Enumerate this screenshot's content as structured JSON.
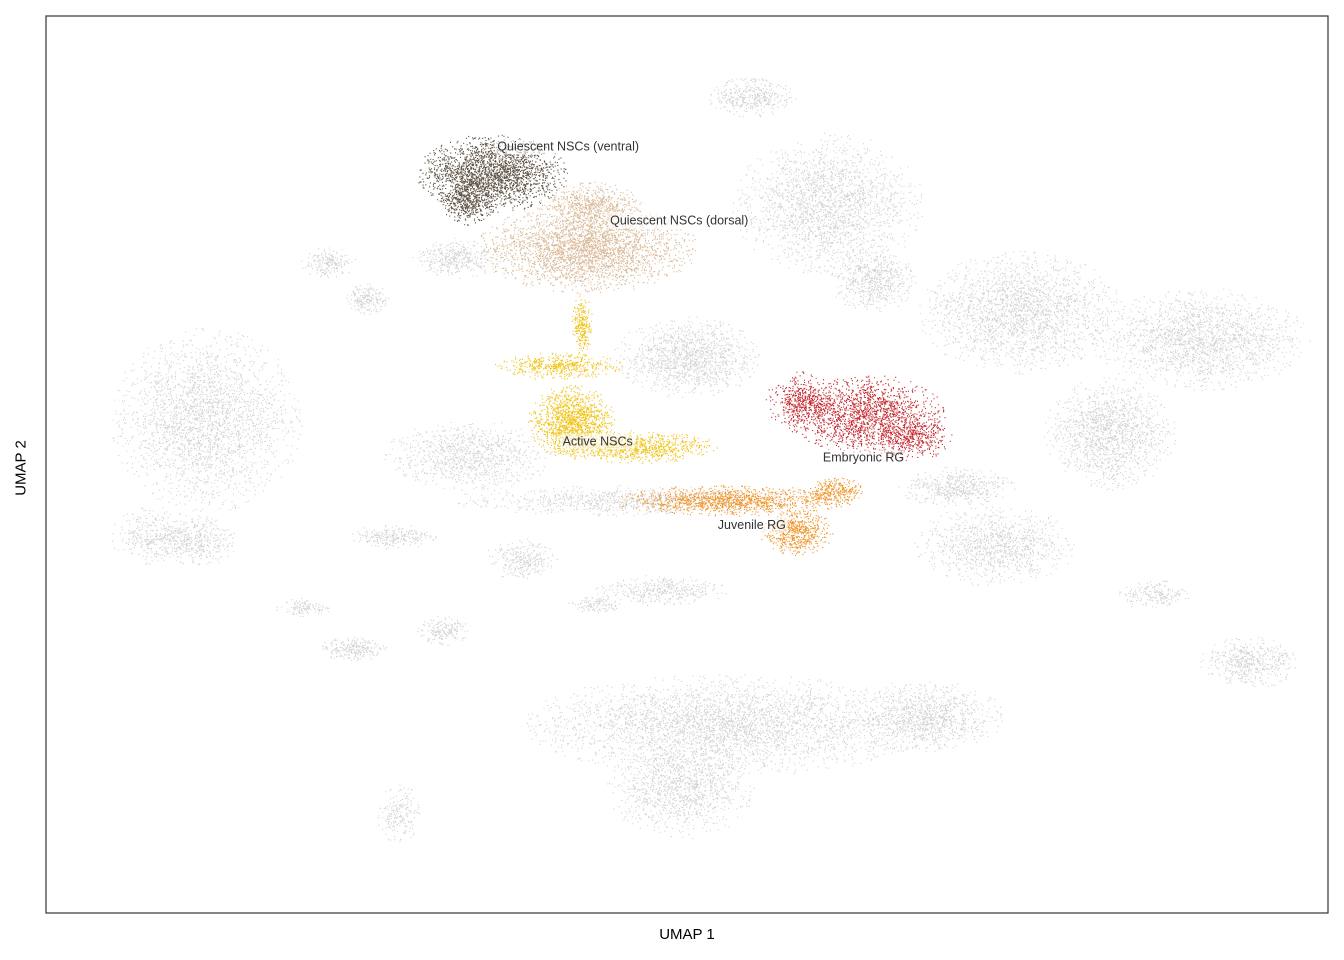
{
  "chart_data": {
    "type": "scatter",
    "title": "",
    "xlabel": "UMAP 1",
    "ylabel": "UMAP 2",
    "xlim": [
      0,
      100
    ],
    "ylim": [
      0,
      100
    ],
    "grid": false,
    "legend": "none",
    "background_color": "#d3d3d3",
    "series": [
      {
        "name": "Quiescent NSCs (ventral)",
        "color": "#5e5345",
        "label_at": [
          35.2,
          85.4
        ],
        "blobs": [
          {
            "cx": 34.8,
            "cy": 82.5,
            "rx": 5.2,
            "ry": 3.8,
            "n": 2200
          },
          {
            "cx": 32.8,
            "cy": 79.5,
            "rx": 2.0,
            "ry": 2.5,
            "n": 500
          }
        ]
      },
      {
        "name": "Quiescent NSCs (dorsal)",
        "color": "#d9b997",
        "label_at": [
          44.0,
          77.1
        ],
        "blobs": [
          {
            "cx": 42.2,
            "cy": 74.2,
            "rx": 7.5,
            "ry": 4.4,
            "n": 3000
          },
          {
            "cx": 42.5,
            "cy": 79.0,
            "rx": 3.5,
            "ry": 2.2,
            "n": 600
          }
        ]
      },
      {
        "name": "Active NSCs",
        "color": "#f0c419",
        "label_at": [
          40.3,
          52.5
        ],
        "blobs": [
          {
            "cx": 41.0,
            "cy": 54.8,
            "rx": 3.0,
            "ry": 3.6,
            "n": 1400
          },
          {
            "cx": 46.0,
            "cy": 52.0,
            "rx": 5.5,
            "ry": 1.6,
            "n": 900
          },
          {
            "cx": 40.0,
            "cy": 61.0,
            "rx": 4.5,
            "ry": 1.3,
            "n": 500
          },
          {
            "cx": 41.8,
            "cy": 65.5,
            "rx": 0.7,
            "ry": 3.2,
            "n": 250
          }
        ]
      },
      {
        "name": "Embryonic RG",
        "color": "#c4282e",
        "label_at": [
          60.6,
          50.7
        ],
        "blobs": [
          {
            "cx": 64.0,
            "cy": 55.5,
            "rx": 5.5,
            "ry": 4.0,
            "n": 1700
          },
          {
            "cx": 59.0,
            "cy": 57.0,
            "rx": 2.5,
            "ry": 3.0,
            "n": 500
          },
          {
            "cx": 67.5,
            "cy": 53.0,
            "rx": 2.8,
            "ry": 2.2,
            "n": 400
          }
        ]
      },
      {
        "name": "Juvenile RG",
        "color": "#f0952a",
        "label_at": [
          52.4,
          43.2
        ],
        "blobs": [
          {
            "cx": 53.5,
            "cy": 46.0,
            "rx": 8.0,
            "ry": 1.5,
            "n": 1200
          },
          {
            "cx": 58.5,
            "cy": 42.5,
            "rx": 2.5,
            "ry": 2.3,
            "n": 600
          },
          {
            "cx": 61.5,
            "cy": 47.0,
            "rx": 2.0,
            "ry": 1.5,
            "n": 300
          }
        ]
      }
    ],
    "background_blobs": [
      {
        "cx": 53.0,
        "cy": 21.0,
        "rx": 14.0,
        "ry": 5.0,
        "n": 3500
      },
      {
        "cx": 49.5,
        "cy": 14.0,
        "rx": 5.0,
        "ry": 5.0,
        "n": 1200
      },
      {
        "cx": 68.5,
        "cy": 22.0,
        "rx": 5.5,
        "ry": 3.5,
        "n": 1100
      },
      {
        "cx": 12.5,
        "cy": 55.0,
        "rx": 6.5,
        "ry": 9.0,
        "n": 2600
      },
      {
        "cx": 8.5,
        "cy": 42.0,
        "rx": 3.0,
        "ry": 3.0,
        "n": 400
      },
      {
        "cx": 12.0,
        "cy": 41.5,
        "rx": 2.5,
        "ry": 2.5,
        "n": 350
      },
      {
        "cx": 83.0,
        "cy": 53.5,
        "rx": 4.5,
        "ry": 5.5,
        "n": 1500
      },
      {
        "cx": 90.0,
        "cy": 64.0,
        "rx": 7.5,
        "ry": 5.0,
        "n": 1900
      },
      {
        "cx": 76.0,
        "cy": 67.0,
        "rx": 7.0,
        "ry": 6.0,
        "n": 2200
      },
      {
        "cx": 61.0,
        "cy": 79.0,
        "rx": 6.5,
        "ry": 7.0,
        "n": 2200
      },
      {
        "cx": 64.5,
        "cy": 70.5,
        "rx": 3.0,
        "ry": 3.0,
        "n": 600
      },
      {
        "cx": 50.0,
        "cy": 62.0,
        "rx": 5.0,
        "ry": 4.0,
        "n": 1300
      },
      {
        "cx": 33.0,
        "cy": 51.0,
        "rx": 6.0,
        "ry": 3.5,
        "n": 1000
      },
      {
        "cx": 45.0,
        "cy": 46.0,
        "rx": 12.0,
        "ry": 1.5,
        "n": 900
      },
      {
        "cx": 74.0,
        "cy": 41.0,
        "rx": 5.5,
        "ry": 4.0,
        "n": 1100
      },
      {
        "cx": 71.0,
        "cy": 47.5,
        "rx": 4.0,
        "ry": 2.0,
        "n": 500
      },
      {
        "cx": 32.0,
        "cy": 73.0,
        "rx": 3.0,
        "ry": 2.0,
        "n": 400
      },
      {
        "cx": 25.0,
        "cy": 68.5,
        "rx": 1.5,
        "ry": 1.5,
        "n": 200
      },
      {
        "cx": 55.0,
        "cy": 91.0,
        "rx": 3.0,
        "ry": 2.0,
        "n": 400
      },
      {
        "cx": 94.0,
        "cy": 28.0,
        "rx": 3.5,
        "ry": 2.5,
        "n": 500
      },
      {
        "cx": 86.5,
        "cy": 35.5,
        "rx": 2.5,
        "ry": 1.5,
        "n": 200
      },
      {
        "cx": 37.0,
        "cy": 39.5,
        "rx": 2.5,
        "ry": 2.0,
        "n": 300
      },
      {
        "cx": 48.0,
        "cy": 36.0,
        "rx": 4.5,
        "ry": 1.5,
        "n": 400
      },
      {
        "cx": 27.0,
        "cy": 42.0,
        "rx": 3.0,
        "ry": 1.2,
        "n": 250
      },
      {
        "cx": 24.0,
        "cy": 29.5,
        "rx": 2.5,
        "ry": 1.2,
        "n": 250
      },
      {
        "cx": 31.0,
        "cy": 31.5,
        "rx": 1.8,
        "ry": 1.5,
        "n": 180
      },
      {
        "cx": 20.0,
        "cy": 34.0,
        "rx": 2.0,
        "ry": 1.0,
        "n": 120
      },
      {
        "cx": 43.0,
        "cy": 34.5,
        "rx": 2.0,
        "ry": 1.0,
        "n": 120
      },
      {
        "cx": 27.5,
        "cy": 11.0,
        "rx": 1.5,
        "ry": 3.0,
        "n": 200
      },
      {
        "cx": 22.0,
        "cy": 72.5,
        "rx": 2.0,
        "ry": 1.5,
        "n": 200
      }
    ]
  }
}
